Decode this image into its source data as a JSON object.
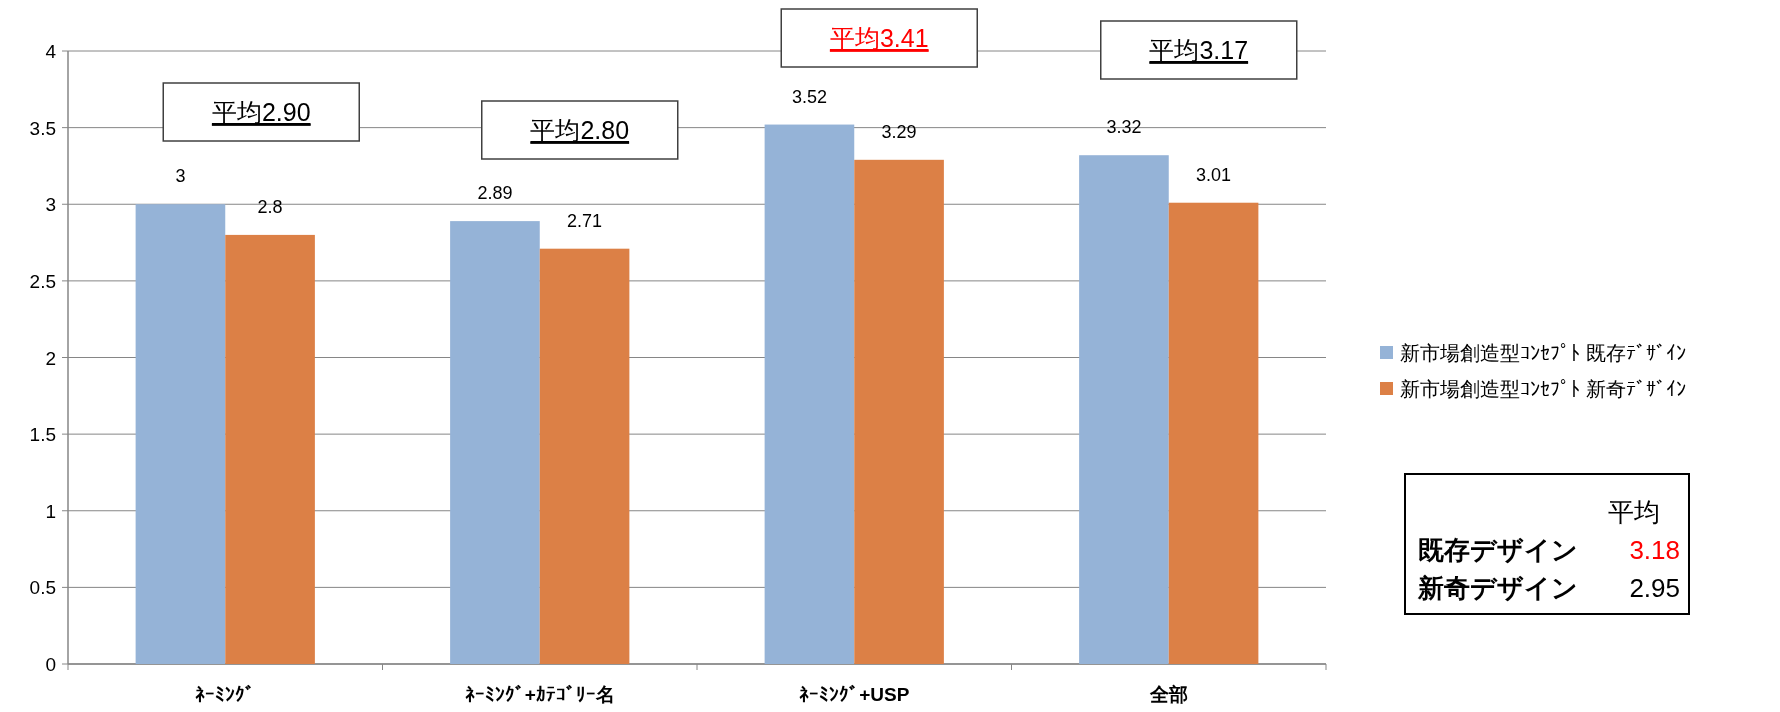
{
  "chart_data": {
    "type": "bar",
    "categories": [
      "ﾈｰﾐﾝｸﾞ",
      "ﾈｰﾐﾝｸﾞ+ｶﾃｺﾞﾘｰ名",
      "ﾈｰﾐﾝｸﾞ+USP",
      "全部"
    ],
    "series": [
      {
        "name": "新市場創造型ｺﾝｾﾌﾟﾄ 既存ﾃﾞｻﾞｲﾝ",
        "color": "#95b3d7",
        "values": [
          3,
          2.89,
          3.52,
          3.32
        ]
      },
      {
        "name": "新市場創造型ｺﾝｾﾌﾟﾄ 新奇ﾃﾞｻﾞｲﾝ",
        "color": "#dc8046",
        "values": [
          2.8,
          2.71,
          3.29,
          3.01
        ]
      }
    ],
    "ylim": [
      0,
      4
    ],
    "yticks": [
      0,
      0.5,
      1,
      1.5,
      2,
      2.5,
      3,
      3.5,
      4
    ],
    "grid": "y",
    "legend": "right",
    "data_labels": true,
    "annotations": [
      "平均2.90",
      "平均2.80",
      "平均3.41",
      "平均3.17",
      "平均",
      "既存デザイン",
      "3.18",
      "新奇デザイン",
      "2.95"
    ]
  }
}
